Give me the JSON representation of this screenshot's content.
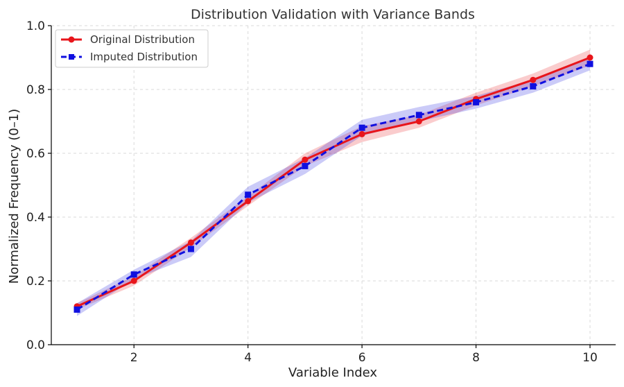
{
  "chart_data": {
    "type": "line",
    "title": "Distribution Validation with Variance Bands",
    "xlabel": "Variable Index",
    "ylabel": "Normalized Frequency (0–1)",
    "x": [
      1,
      2,
      3,
      4,
      5,
      6,
      7,
      8,
      9,
      10
    ],
    "xlim": [
      0.55,
      10.45
    ],
    "ylim": [
      0,
      1
    ],
    "xticks": [
      2,
      4,
      6,
      8,
      10
    ],
    "yticks": [
      0.0,
      0.2,
      0.4,
      0.6,
      0.8,
      1.0
    ],
    "xtick_labels": [
      "2",
      "4",
      "6",
      "8",
      "10"
    ],
    "ytick_labels": [
      "0.0",
      "0.2",
      "0.4",
      "0.6",
      "0.8",
      "1.0"
    ],
    "grid": true,
    "legend_position": "top-left",
    "series": [
      {
        "name": "Original Distribution",
        "color": "#e8151b",
        "marker": "circle",
        "line_style": "solid",
        "values": [
          0.12,
          0.2,
          0.32,
          0.45,
          0.58,
          0.66,
          0.7,
          0.77,
          0.83,
          0.9
        ],
        "band_lower": [
          0.11,
          0.185,
          0.305,
          0.435,
          0.56,
          0.635,
          0.68,
          0.75,
          0.81,
          0.875
        ],
        "band_upper": [
          0.13,
          0.215,
          0.335,
          0.465,
          0.6,
          0.685,
          0.72,
          0.79,
          0.85,
          0.925
        ]
      },
      {
        "name": "Imputed Distribution",
        "color": "#1010e0",
        "marker": "square",
        "line_style": "dashed",
        "values": [
          0.11,
          0.22,
          0.3,
          0.47,
          0.56,
          0.68,
          0.72,
          0.76,
          0.81,
          0.88
        ],
        "band_lower": [
          0.09,
          0.205,
          0.275,
          0.445,
          0.535,
          0.655,
          0.7,
          0.74,
          0.79,
          0.86
        ],
        "band_upper": [
          0.13,
          0.235,
          0.325,
          0.495,
          0.585,
          0.705,
          0.745,
          0.78,
          0.83,
          0.9
        ]
      }
    ]
  }
}
